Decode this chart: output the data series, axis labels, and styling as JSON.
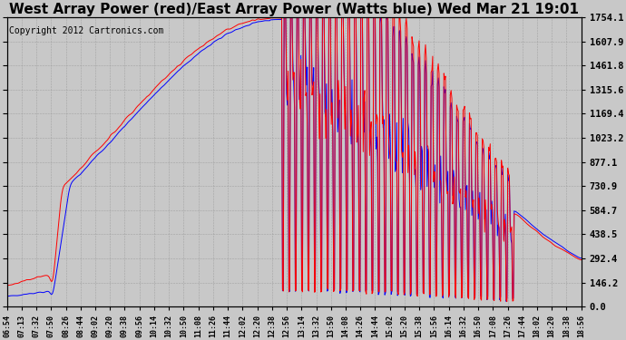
{
  "title": "West Array Power (red)/East Array Power (Watts blue) Wed Mar 21 19:01",
  "copyright": "Copyright 2012 Cartronics.com",
  "ylabel_right": [
    "0.0",
    "146.2",
    "292.4",
    "438.5",
    "584.7",
    "730.9",
    "877.1",
    "1023.2",
    "1169.4",
    "1315.6",
    "1461.8",
    "1607.9",
    "1754.1"
  ],
  "ymax": 1754.1,
  "ymin": 0.0,
  "yticks": [
    0.0,
    146.2,
    292.4,
    438.5,
    584.7,
    730.9,
    877.1,
    1023.2,
    1169.4,
    1315.6,
    1461.8,
    1607.9,
    1754.1
  ],
  "xtick_labels": [
    "06:54",
    "07:13",
    "07:32",
    "07:50",
    "08:26",
    "08:44",
    "09:02",
    "09:20",
    "09:38",
    "09:56",
    "10:14",
    "10:32",
    "10:50",
    "11:08",
    "11:26",
    "11:44",
    "12:02",
    "12:20",
    "12:38",
    "12:56",
    "13:14",
    "13:32",
    "13:50",
    "14:08",
    "14:26",
    "14:44",
    "15:02",
    "15:20",
    "15:38",
    "15:56",
    "16:14",
    "16:32",
    "16:50",
    "17:08",
    "17:26",
    "17:44",
    "18:02",
    "18:20",
    "18:38",
    "18:56"
  ],
  "background_color": "#c8c8c8",
  "plot_background": "#c8c8c8",
  "grid_color": "#aaaaaa",
  "line_red_color": "#ff0000",
  "line_blue_color": "#0000ff",
  "title_fontsize": 11,
  "copyright_fontsize": 7
}
